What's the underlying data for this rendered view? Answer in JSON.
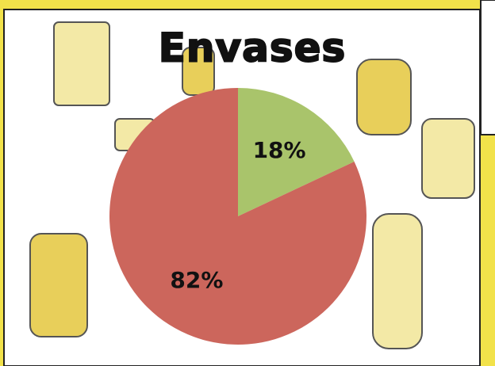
{
  "chart_data": {
    "type": "pie",
    "title": "Envases",
    "values": [
      18,
      82
    ],
    "value_labels": [
      "18%",
      "82%"
    ],
    "colors": [
      "#a9c46b",
      "#cc665c"
    ]
  }
}
